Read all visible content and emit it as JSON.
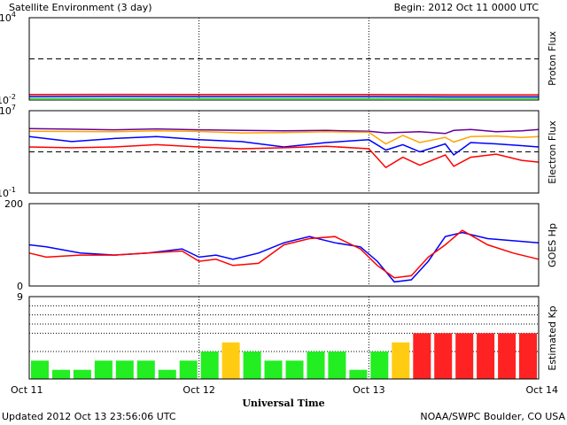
{
  "header": {
    "title": "Satellite Environment (3 day)",
    "begin": "Begin:  2012 Oct 11 0000 UTC"
  },
  "footer": {
    "updated": "Updated 2012 Oct 13 23:56:06 UTC",
    "credit": "NOAA/SWPC Boulder, CO USA"
  },
  "colors": {
    "red": "#ff0000",
    "blue": "#0000ff",
    "green": "#22ee22",
    "orange": "#ffa500",
    "purple": "#660099",
    "kp_green": "#22ee22",
    "kp_yellow": "#ffcc11",
    "kp_red": "#ff2222"
  },
  "chart_data": [
    {
      "type": "line",
      "ylabel": "Proton Flux",
      "y_scale": "log",
      "ylim": [
        0.01,
        10000
      ],
      "y_ticks": [
        {
          "value": 0.01,
          "label": "10",
          "exp": "-2"
        },
        {
          "value": 10000,
          "label": "10",
          "exp": "4"
        }
      ],
      "threshold": 10,
      "x_range_days": [
        0,
        3
      ],
      "series": [
        {
          "color": "red",
          "x": [
            0,
            0.5,
            1,
            1.5,
            2,
            2.5,
            3
          ],
          "y": [
            0.025,
            0.026,
            0.025,
            0.026,
            0.025,
            0.024,
            0.024
          ]
        },
        {
          "color": "blue",
          "x": [
            0,
            0.5,
            1,
            1.5,
            2,
            2.5,
            3
          ],
          "y": [
            0.018,
            0.019,
            0.018,
            0.018,
            0.018,
            0.017,
            0.017
          ]
        },
        {
          "color": "green",
          "x": [
            0,
            0.5,
            1,
            1.5,
            2,
            2.5,
            3
          ],
          "y": [
            0.013,
            0.013,
            0.013,
            0.013,
            0.013,
            0.013,
            0.013
          ]
        }
      ]
    },
    {
      "type": "line",
      "ylabel": "Electron Flux",
      "y_scale": "log",
      "ylim": [
        0.1,
        10000000
      ],
      "y_ticks": [
        {
          "value": 0.1,
          "label": "10",
          "exp": "-1"
        },
        {
          "value": 10000000,
          "label": "10",
          "exp": "7"
        }
      ],
      "threshold": 1000,
      "x_range_days": [
        0,
        3
      ],
      "series": [
        {
          "color": "purple",
          "x": [
            0,
            0.25,
            0.5,
            0.75,
            1,
            1.25,
            1.5,
            1.75,
            2,
            2.1,
            2.3,
            2.45,
            2.5,
            2.6,
            2.75,
            2.9,
            3
          ],
          "y": [
            180000,
            160000,
            140000,
            170000,
            140000,
            120000,
            110000,
            120000,
            100000,
            70000,
            90000,
            60000,
            120000,
            150000,
            90000,
            110000,
            150000
          ]
        },
        {
          "color": "orange",
          "x": [
            0,
            0.25,
            0.5,
            0.75,
            1,
            1.25,
            1.5,
            1.75,
            2,
            2.1,
            2.2,
            2.3,
            2.45,
            2.5,
            2.6,
            2.75,
            2.9,
            3
          ],
          "y": [
            100000,
            95000,
            90000,
            110000,
            95000,
            70000,
            75000,
            90000,
            80000,
            6000,
            40000,
            8000,
            25000,
            9000,
            30000,
            35000,
            25000,
            30000
          ]
        },
        {
          "color": "blue",
          "x": [
            0,
            0.25,
            0.5,
            0.75,
            1,
            1.25,
            1.5,
            1.75,
            2,
            2.1,
            2.2,
            2.3,
            2.45,
            2.5,
            2.6,
            2.75,
            2.9,
            3
          ],
          "y": [
            30000,
            10000,
            20000,
            30000,
            15000,
            10000,
            3000,
            8000,
            15000,
            1500,
            5000,
            1000,
            6000,
            500,
            8000,
            6000,
            4000,
            3000
          ]
        },
        {
          "color": "red",
          "x": [
            0,
            0.25,
            0.5,
            0.75,
            1,
            1.25,
            1.5,
            1.75,
            2,
            2.1,
            2.2,
            2.3,
            2.45,
            2.5,
            2.6,
            2.75,
            2.9,
            3
          ],
          "y": [
            3000,
            2500,
            3000,
            5000,
            3000,
            2000,
            2500,
            3500,
            2000,
            30,
            300,
            50,
            500,
            40,
            300,
            600,
            150,
            100
          ]
        }
      ]
    },
    {
      "type": "line",
      "ylabel": "GOES Hp",
      "y_scale": "linear",
      "ylim": [
        0,
        200
      ],
      "y_ticks": [
        {
          "value": 0,
          "label": "0"
        },
        {
          "value": 200,
          "label": "200"
        }
      ],
      "x_range_days": [
        0,
        3
      ],
      "series": [
        {
          "color": "blue",
          "x": [
            0,
            0.1,
            0.3,
            0.5,
            0.7,
            0.9,
            1.0,
            1.1,
            1.2,
            1.35,
            1.5,
            1.65,
            1.8,
            1.95,
            2.05,
            2.15,
            2.25,
            2.35,
            2.45,
            2.55,
            2.7,
            2.85,
            3
          ],
          "y": [
            100,
            95,
            80,
            75,
            80,
            90,
            70,
            75,
            65,
            80,
            105,
            120,
            105,
            95,
            60,
            10,
            15,
            60,
            120,
            130,
            115,
            110,
            105
          ]
        },
        {
          "color": "red",
          "x": [
            0,
            0.1,
            0.3,
            0.5,
            0.7,
            0.9,
            1.0,
            1.1,
            1.2,
            1.35,
            1.5,
            1.65,
            1.8,
            1.95,
            2.05,
            2.15,
            2.25,
            2.35,
            2.45,
            2.55,
            2.7,
            2.85,
            3
          ],
          "y": [
            80,
            70,
            75,
            75,
            80,
            85,
            60,
            65,
            50,
            55,
            100,
            115,
            120,
            90,
            50,
            20,
            25,
            70,
            100,
            135,
            100,
            80,
            65
          ]
        }
      ]
    },
    {
      "type": "bar",
      "ylabel": "Estimated Kp",
      "ylim": [
        0,
        9
      ],
      "y_ticks": [
        {
          "value": 9,
          "label": "9"
        }
      ],
      "bar_hours": 3,
      "values": [
        2,
        1,
        1,
        2,
        2,
        2,
        1,
        2,
        3,
        4,
        3,
        2,
        2,
        3,
        3,
        1,
        3,
        4,
        5,
        5,
        5,
        5,
        5,
        5
      ],
      "levels": [
        "green",
        "green",
        "green",
        "green",
        "green",
        "green",
        "green",
        "green",
        "green",
        "yellow",
        "green",
        "green",
        "green",
        "green",
        "green",
        "green",
        "green",
        "yellow",
        "red",
        "red",
        "red",
        "red",
        "red",
        "red"
      ],
      "dotted_levels": [
        3,
        5,
        6,
        7,
        8
      ],
      "x_ticks": [
        "Oct 11",
        "Oct 12",
        "Oct 13",
        "Oct 14"
      ],
      "xlabel": "Universal Time"
    }
  ]
}
